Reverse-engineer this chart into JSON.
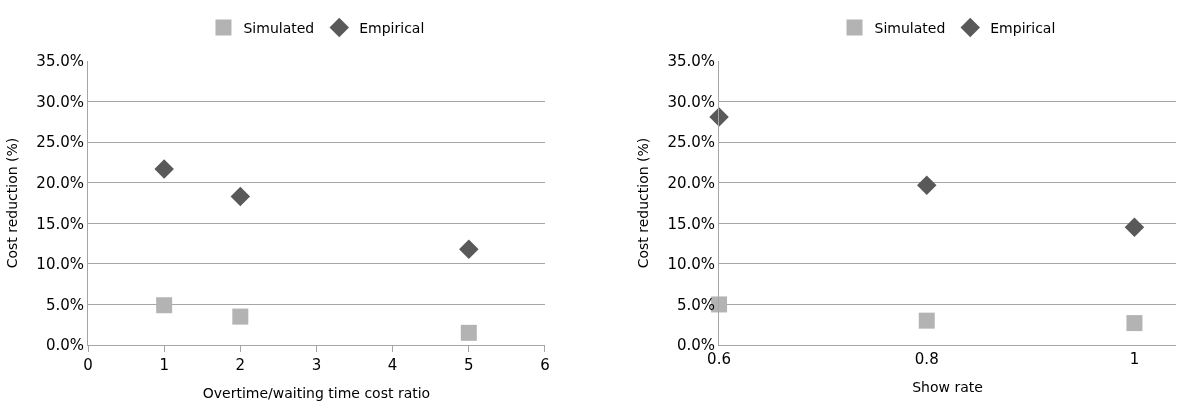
{
  "chart_data": [
    {
      "type": "scatter",
      "xlabel": "Overtime/waiting time cost ratio",
      "ylabel": "Cost reduction (%)",
      "x": [
        1,
        2,
        5
      ],
      "series": [
        {
          "name": "Simulated",
          "color": "#b3b3b3",
          "marker": "square",
          "values": [
            4.9,
            3.5,
            1.5
          ]
        },
        {
          "name": "Empirical",
          "color": "#595959",
          "marker": "diamond",
          "values": [
            21.7,
            18.3,
            11.8
          ]
        }
      ],
      "xlim": [
        0,
        6
      ],
      "xticks": [
        0,
        1,
        2,
        3,
        4,
        5,
        6
      ],
      "ylim": [
        0,
        35
      ],
      "yticks": [
        {
          "value": 0,
          "label": "0.0%"
        },
        {
          "value": 5,
          "label": "5.0%"
        },
        {
          "value": 10,
          "label": "10.0%"
        },
        {
          "value": 15,
          "label": "15.0%"
        },
        {
          "value": 20,
          "label": "20.0%"
        },
        {
          "value": 25,
          "label": "25.0%"
        },
        {
          "value": 30,
          "label": "30.0%"
        },
        {
          "value": 35,
          "label": "35.0%"
        }
      ],
      "grid": "y",
      "legend": "top"
    },
    {
      "type": "scatter",
      "xlabel": "Show rate",
      "ylabel": "Cost reduction (%)",
      "x": [
        0.6,
        0.8,
        1
      ],
      "series": [
        {
          "name": "Simulated",
          "color": "#b3b3b3",
          "marker": "square",
          "values": [
            5.0,
            3.0,
            2.7
          ]
        },
        {
          "name": "Empirical",
          "color": "#595959",
          "marker": "diamond",
          "values": [
            28.1,
            19.7,
            14.5
          ]
        }
      ],
      "xlim": [
        0.6,
        1.04
      ],
      "xticks": [
        0.6,
        0.8,
        1
      ],
      "ylim": [
        0,
        35
      ],
      "yticks": [
        {
          "value": 0,
          "label": "0.0%"
        },
        {
          "value": 5,
          "label": "5.0%"
        },
        {
          "value": 10,
          "label": "10.0%"
        },
        {
          "value": 15,
          "label": "15.0%"
        },
        {
          "value": 20,
          "label": "20.0%"
        },
        {
          "value": 25,
          "label": "25.0%"
        },
        {
          "value": 30,
          "label": "30.0%"
        },
        {
          "value": 35,
          "label": "35.0%"
        }
      ],
      "grid": "y",
      "legend": "top"
    }
  ]
}
